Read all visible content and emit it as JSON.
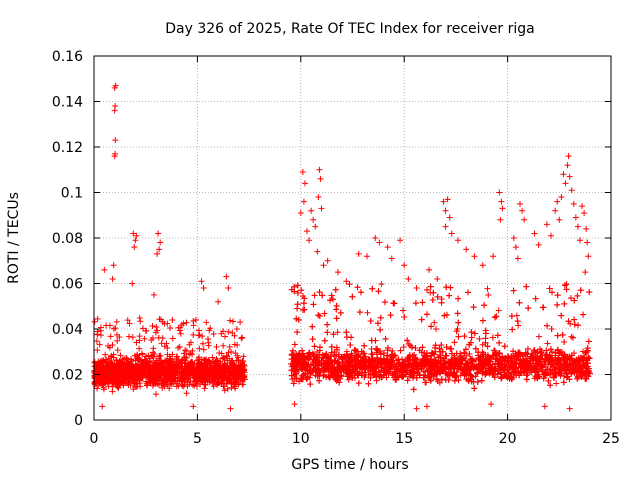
{
  "chart_data": {
    "type": "scatter",
    "title": "Day 326 of 2025, Rate Of TEC Index for receiver riga",
    "xlabel": "GPS time / hours",
    "ylabel": "ROTI / TECUs",
    "xlim": [
      0,
      25
    ],
    "ylim": [
      0,
      0.16
    ],
    "xticks": [
      0,
      5,
      10,
      15,
      20,
      25
    ],
    "xtick_labels": [
      "0",
      "5",
      "10",
      "15",
      "20",
      "25"
    ],
    "yticks": [
      0,
      0.02,
      0.04,
      0.06,
      0.08,
      0.1,
      0.12,
      0.14,
      0.16
    ],
    "ytick_labels": [
      "0",
      "0.02",
      "0.04",
      "0.06",
      "0.08",
      "0.1",
      "0.12",
      "0.14",
      "0.16"
    ],
    "grid": true,
    "marker": "+",
    "series": [
      {
        "name": "ROTI",
        "color": "#ff0000",
        "segments": [
          {
            "x_start": 0.0,
            "x_end": 7.3,
            "baseline": 0.021,
            "spread": 0.011,
            "upper_envelope": 0.045
          },
          {
            "x_start": 9.5,
            "x_end": 24.0,
            "baseline": 0.024,
            "spread": 0.012,
            "upper_envelope": 0.06
          }
        ],
        "points": [
          [
            1.05,
            0.147
          ],
          [
            1.0,
            0.146
          ],
          [
            1.02,
            0.138
          ],
          [
            1.0,
            0.136
          ],
          [
            1.03,
            0.123
          ],
          [
            1.0,
            0.116
          ],
          [
            1.02,
            0.117
          ],
          [
            0.95,
            0.068
          ],
          [
            0.9,
            0.062
          ],
          [
            0.5,
            0.066
          ],
          [
            1.9,
            0.082
          ],
          [
            2.0,
            0.079
          ],
          [
            1.95,
            0.076
          ],
          [
            2.05,
            0.081
          ],
          [
            1.85,
            0.06
          ],
          [
            3.1,
            0.082
          ],
          [
            3.2,
            0.078
          ],
          [
            3.15,
            0.075
          ],
          [
            3.05,
            0.073
          ],
          [
            2.9,
            0.055
          ],
          [
            5.2,
            0.061
          ],
          [
            5.3,
            0.058
          ],
          [
            6.4,
            0.063
          ],
          [
            6.5,
            0.058
          ],
          [
            6.0,
            0.052
          ],
          [
            10.1,
            0.109
          ],
          [
            10.2,
            0.104
          ],
          [
            10.15,
            0.096
          ],
          [
            10.0,
            0.091
          ],
          [
            10.3,
            0.083
          ],
          [
            10.4,
            0.079
          ],
          [
            10.5,
            0.092
          ],
          [
            10.6,
            0.088
          ],
          [
            10.9,
            0.11
          ],
          [
            10.95,
            0.106
          ],
          [
            10.85,
            0.098
          ],
          [
            11.0,
            0.093
          ],
          [
            10.7,
            0.085
          ],
          [
            11.1,
            0.068
          ],
          [
            10.8,
            0.074
          ],
          [
            11.3,
            0.07
          ],
          [
            11.8,
            0.065
          ],
          [
            12.2,
            0.061
          ],
          [
            12.8,
            0.073
          ],
          [
            13.2,
            0.072
          ],
          [
            13.6,
            0.08
          ],
          [
            13.8,
            0.078
          ],
          [
            14.2,
            0.076
          ],
          [
            14.4,
            0.071
          ],
          [
            14.8,
            0.079
          ],
          [
            15.0,
            0.068
          ],
          [
            15.2,
            0.062
          ],
          [
            15.6,
            0.058
          ],
          [
            16.2,
            0.066
          ],
          [
            16.6,
            0.062
          ],
          [
            16.9,
            0.096
          ],
          [
            17.0,
            0.092
          ],
          [
            17.1,
            0.097
          ],
          [
            17.2,
            0.089
          ],
          [
            17.0,
            0.085
          ],
          [
            17.3,
            0.082
          ],
          [
            17.6,
            0.079
          ],
          [
            18.0,
            0.075
          ],
          [
            18.4,
            0.072
          ],
          [
            18.8,
            0.068
          ],
          [
            19.3,
            0.072
          ],
          [
            19.6,
            0.1
          ],
          [
            19.7,
            0.096
          ],
          [
            19.75,
            0.093
          ],
          [
            19.65,
            0.088
          ],
          [
            20.3,
            0.08
          ],
          [
            20.4,
            0.076
          ],
          [
            20.5,
            0.071
          ],
          [
            20.6,
            0.095
          ],
          [
            20.7,
            0.092
          ],
          [
            20.8,
            0.088
          ],
          [
            21.3,
            0.082
          ],
          [
            21.5,
            0.077
          ],
          [
            21.9,
            0.086
          ],
          [
            22.1,
            0.081
          ],
          [
            22.3,
            0.092
          ],
          [
            22.4,
            0.096
          ],
          [
            22.5,
            0.088
          ],
          [
            22.6,
            0.098
          ],
          [
            22.7,
            0.108
          ],
          [
            22.8,
            0.104
          ],
          [
            22.9,
            0.112
          ],
          [
            22.95,
            0.116
          ],
          [
            23.0,
            0.107
          ],
          [
            23.1,
            0.101
          ],
          [
            23.2,
            0.095
          ],
          [
            23.3,
            0.089
          ],
          [
            23.4,
            0.085
          ],
          [
            23.5,
            0.079
          ],
          [
            23.6,
            0.094
          ],
          [
            23.7,
            0.091
          ],
          [
            23.8,
            0.084
          ],
          [
            23.85,
            0.078
          ],
          [
            23.9,
            0.072
          ],
          [
            23.75,
            0.065
          ],
          [
            0.4,
            0.006
          ],
          [
            4.8,
            0.006
          ],
          [
            6.6,
            0.005
          ],
          [
            9.7,
            0.007
          ],
          [
            13.9,
            0.006
          ],
          [
            15.6,
            0.005
          ],
          [
            16.1,
            0.006
          ],
          [
            19.2,
            0.007
          ],
          [
            23.0,
            0.005
          ],
          [
            21.8,
            0.006
          ]
        ]
      }
    ]
  }
}
